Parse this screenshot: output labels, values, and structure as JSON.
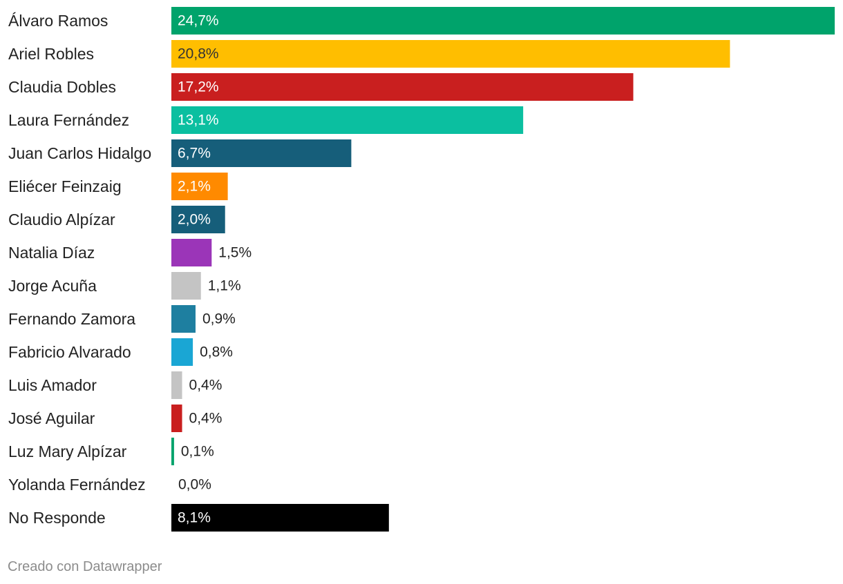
{
  "chart_data": {
    "type": "bar",
    "orientation": "horizontal",
    "categories": [
      "Álvaro Ramos",
      "Ariel Robles",
      "Claudia Dobles",
      "Laura Fernández",
      "Juan Carlos Hidalgo",
      "Eliécer Feinzaig",
      "Claudio Alpízar",
      "Natalia Díaz",
      "Jorge Acuña",
      "Fernando Zamora",
      "Fabricio Alvarado",
      "Luis Amador",
      "José Aguilar",
      "Luz Mary Alpízar",
      "Yolanda Fernández",
      "No Responde"
    ],
    "values": [
      24.7,
      20.8,
      17.2,
      13.1,
      6.7,
      2.1,
      2.0,
      1.5,
      1.1,
      0.9,
      0.8,
      0.4,
      0.4,
      0.1,
      0.0,
      8.1
    ],
    "value_labels": [
      "24,7%",
      "20,8%",
      "17,2%",
      "13,1%",
      "6,7%",
      "2,1%",
      "2,0%",
      "1,5%",
      "1,1%",
      "0,9%",
      "0,8%",
      "0,4%",
      "0,4%",
      "0,1%",
      "0,0%",
      "8,1%"
    ],
    "colors": [
      "#00a36b",
      "#ffbe00",
      "#c91f1f",
      "#0bbfa0",
      "#165e7a",
      "#ff8a00",
      "#165e7a",
      "#9b35b8",
      "#c4c4c4",
      "#1e7fa0",
      "#1aa6d4",
      "#c4c4c4",
      "#c91f1f",
      "#00a36b",
      "#c4c4c4",
      "#000000"
    ],
    "label_text_colors": [
      "#ffffff",
      "#333333",
      "#ffffff",
      "#ffffff",
      "#ffffff",
      "#ffffff",
      "#ffffff",
      "#222222",
      "#222222",
      "#222222",
      "#222222",
      "#222222",
      "#222222",
      "#222222",
      "#222222",
      "#ffffff"
    ],
    "xlim": [
      0,
      24.7
    ],
    "grid": false,
    "legend": "none"
  },
  "footer": {
    "credit": "Creado con Datawrapper"
  }
}
